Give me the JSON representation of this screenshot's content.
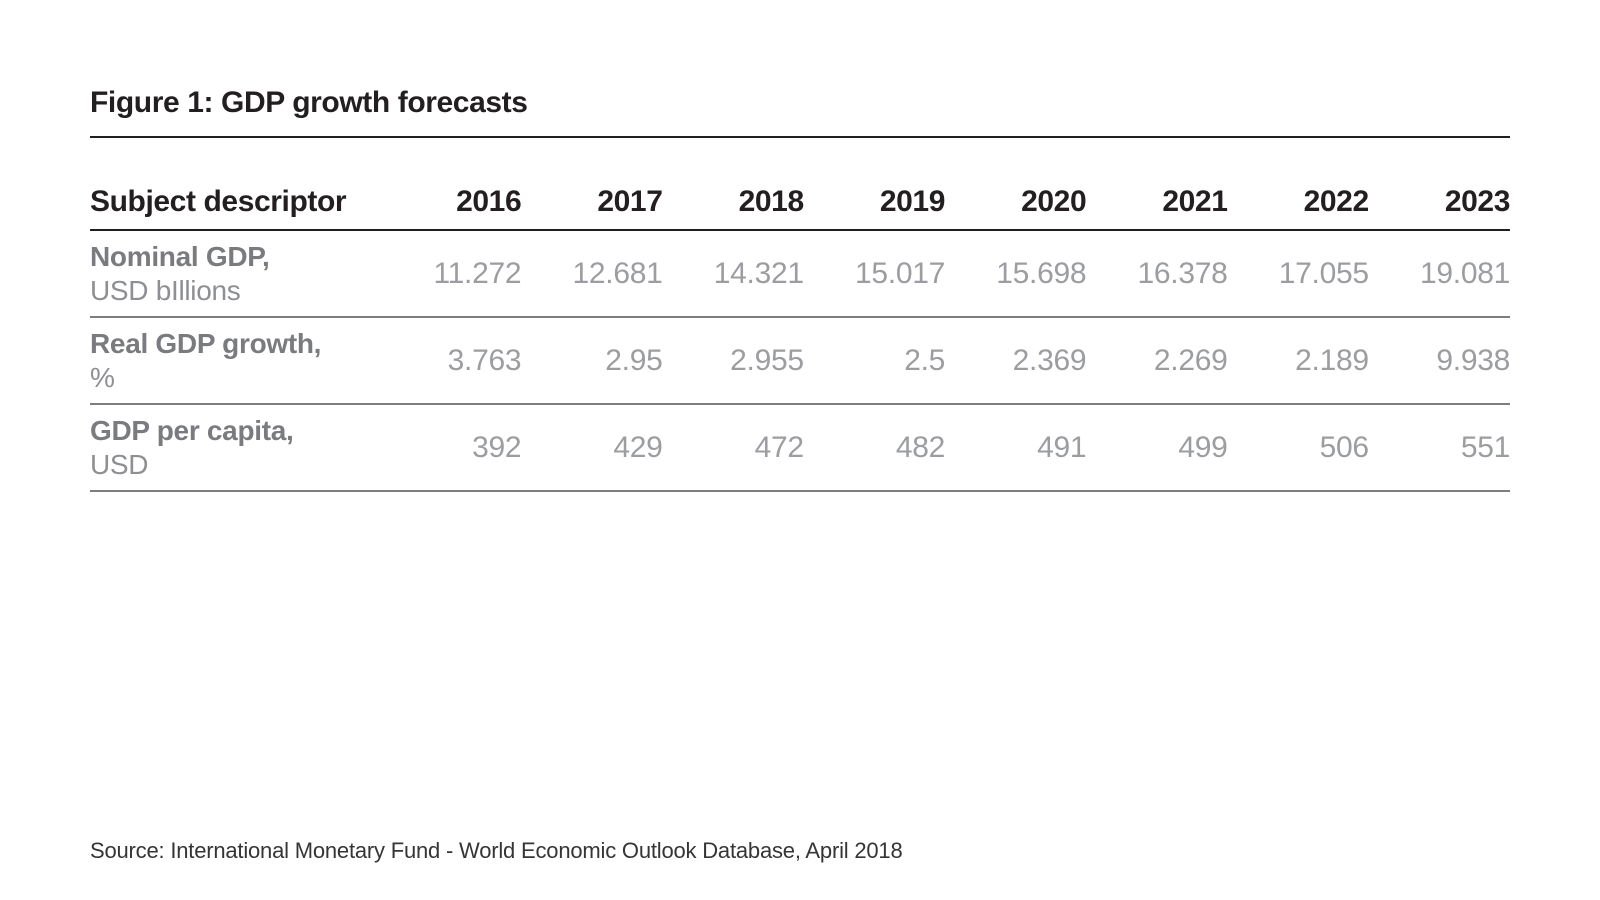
{
  "figure": {
    "title": "Figure 1: GDP growth forecasts",
    "source": "Source: International Monetary Fund - World Economic Outlook Database, April 2018"
  },
  "table": {
    "header": {
      "subject_label": "Subject descriptor",
      "years": [
        "2016",
        "2017",
        "2018",
        "2019",
        "2020",
        "2021",
        "2022",
        "2023"
      ]
    },
    "rows": [
      {
        "label": "Nominal GDP,",
        "sublabel": "USD bIllions",
        "values": [
          "11.272",
          "12.681",
          "14.321",
          "15.017",
          "15.698",
          "16.378",
          "17.055",
          "19.081"
        ]
      },
      {
        "label": "Real GDP growth,",
        "sublabel": "%",
        "values": [
          "3.763",
          "2.95",
          "2.955",
          "2.5",
          "2.369",
          "2.269",
          "2.189",
          "9.938"
        ]
      },
      {
        "label": "GDP per capita,",
        "sublabel": "USD",
        "values": [
          "392",
          "429",
          "472",
          "482",
          "491",
          "499",
          "506",
          "551"
        ]
      }
    ]
  },
  "chart_data": {
    "type": "table",
    "title": "Figure 1: GDP growth forecasts",
    "categories": [
      "2016",
      "2017",
      "2018",
      "2019",
      "2020",
      "2021",
      "2022",
      "2023"
    ],
    "series": [
      {
        "name": "Nominal GDP, USD bIllions",
        "values": [
          11.272,
          12.681,
          14.321,
          15.017,
          15.698,
          16.378,
          17.055,
          19.081
        ]
      },
      {
        "name": "Real GDP growth, %",
        "values": [
          3.763,
          2.95,
          2.955,
          2.5,
          2.369,
          2.269,
          2.189,
          9.938
        ]
      },
      {
        "name": "GDP per capita, USD",
        "values": [
          392,
          429,
          472,
          482,
          491,
          499,
          506,
          551
        ]
      }
    ],
    "source": "Source: International Monetary Fund - World Economic Outlook Database, April 2018"
  },
  "colors": {
    "text_primary": "#231f20",
    "label_bold_gray": "#7a7b7e",
    "label_gray": "#8d8f92",
    "value_gray": "#9b9da0",
    "separator_gray": "#7d7e81",
    "source_text": "#353537",
    "background": "#ffffff"
  }
}
